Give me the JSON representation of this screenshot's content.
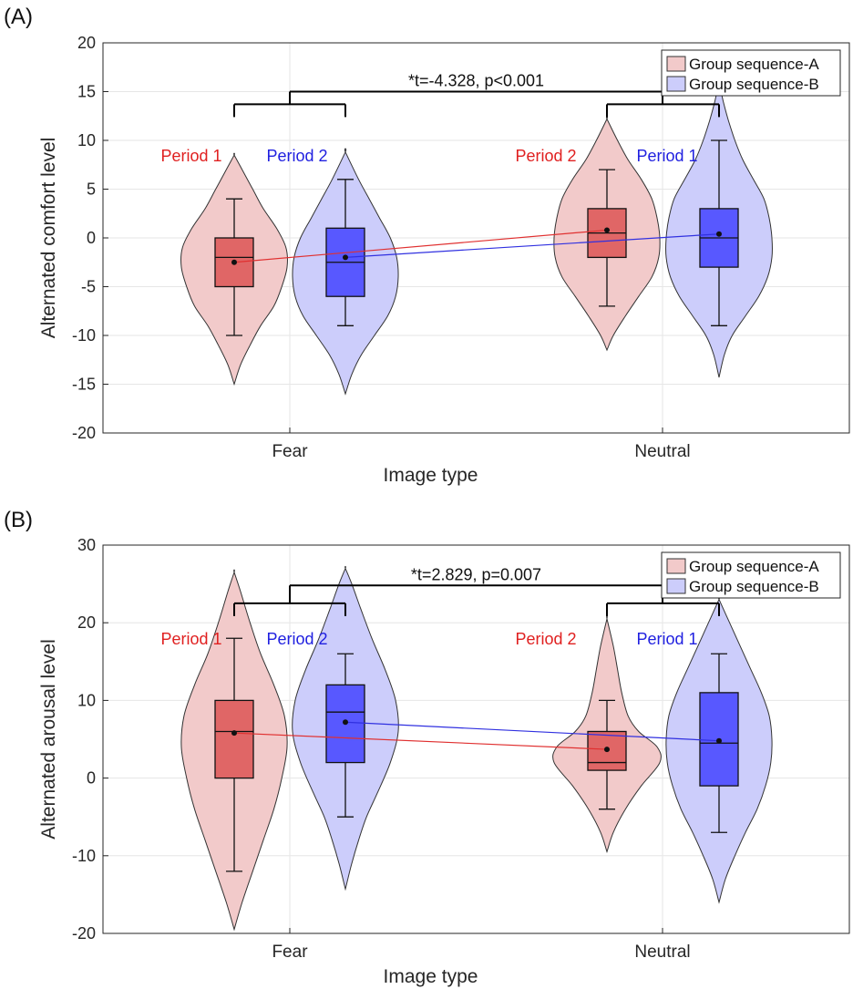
{
  "chart_data": [
    {
      "type": "violin",
      "panel_label": "(A)",
      "xlabel": "Image type",
      "ylabel": "Alternated comfort level",
      "categories": [
        "Fear",
        "Neutral"
      ],
      "ylim": [
        -20,
        20
      ],
      "yticks": [
        "20",
        "15",
        "10",
        "5",
        "0",
        "-5",
        "-10",
        "-15",
        "-20"
      ],
      "ytick_values": [
        20,
        15,
        10,
        5,
        0,
        -5,
        -10,
        -15,
        -20
      ],
      "grid": true,
      "legend": {
        "placement": "top-right",
        "entries": [
          "Group sequence-A",
          "Group sequence-B"
        ]
      },
      "annotation": "*t=-4.328, p<0.001",
      "series": [
        {
          "name": "Group sequence-A",
          "color": "#d9534f",
          "violins": [
            {
              "category": "Fear",
              "period": "Period 1",
              "min": -15,
              "max": 8.5,
              "whisker_low": -10,
              "q1": -5,
              "median": -2,
              "q3": 0,
              "whisker_high": 4,
              "mean": -2.5,
              "profile": [
                [
                  -15,
                  0
                ],
                [
                  -13,
                  0.12
                ],
                [
                  -11,
                  0.3
                ],
                [
                  -9,
                  0.5
                ],
                [
                  -7,
                  0.75
                ],
                [
                  -5,
                  0.9
                ],
                [
                  -3,
                  1
                ],
                [
                  -1,
                  0.98
                ],
                [
                  1,
                  0.8
                ],
                [
                  3,
                  0.55
                ],
                [
                  5,
                  0.35
                ],
                [
                  7,
                  0.15
                ],
                [
                  8.5,
                  0
                ]
              ]
            },
            {
              "category": "Neutral",
              "period": "Period 2",
              "min": -11.5,
              "max": 12.2,
              "whisker_low": -7,
              "q1": -2,
              "median": 0.5,
              "q3": 3,
              "whisker_high": 7,
              "mean": 0.8,
              "profile": [
                [
                  -11.5,
                  0
                ],
                [
                  -10,
                  0.12
                ],
                [
                  -8,
                  0.35
                ],
                [
                  -6,
                  0.6
                ],
                [
                  -4,
                  0.85
                ],
                [
                  -2,
                  0.98
                ],
                [
                  0,
                  1
                ],
                [
                  2,
                  0.95
                ],
                [
                  4,
                  0.85
                ],
                [
                  6,
                  0.65
                ],
                [
                  8,
                  0.4
                ],
                [
                  10,
                  0.2
                ],
                [
                  12.2,
                  0
                ]
              ]
            }
          ]
        },
        {
          "name": "Group sequence-B",
          "color": "#4a4aff",
          "violins": [
            {
              "category": "Fear",
              "period": "Period 2",
              "min": -16,
              "max": 8.8,
              "whisker_low": -9,
              "q1": -6,
              "median": -2.5,
              "q3": 1,
              "whisker_high": 6,
              "mean": -2,
              "profile": [
                [
                  -16,
                  0
                ],
                [
                  -14,
                  0.12
                ],
                [
                  -12,
                  0.3
                ],
                [
                  -10,
                  0.55
                ],
                [
                  -8,
                  0.8
                ],
                [
                  -6,
                  0.95
                ],
                [
                  -4,
                  1
                ],
                [
                  -2,
                  0.97
                ],
                [
                  0,
                  0.85
                ],
                [
                  2,
                  0.65
                ],
                [
                  4,
                  0.45
                ],
                [
                  6,
                  0.25
                ],
                [
                  8.8,
                  0
                ]
              ]
            },
            {
              "category": "Neutral",
              "period": "Period 1",
              "min": -14.3,
              "max": 16,
              "whisker_low": -9,
              "q1": -3,
              "median": 0,
              "q3": 3,
              "whisker_high": 10,
              "mean": 0.4,
              "profile": [
                [
                  -14.3,
                  0
                ],
                [
                  -12,
                  0.1
                ],
                [
                  -10,
                  0.25
                ],
                [
                  -8,
                  0.5
                ],
                [
                  -6,
                  0.75
                ],
                [
                  -4,
                  0.92
                ],
                [
                  -2,
                  1
                ],
                [
                  0,
                  1
                ],
                [
                  2,
                  0.95
                ],
                [
                  4,
                  0.85
                ],
                [
                  6,
                  0.65
                ],
                [
                  8,
                  0.45
                ],
                [
                  10,
                  0.3
                ],
                [
                  12,
                  0.18
                ],
                [
                  14,
                  0.08
                ],
                [
                  16,
                  0
                ]
              ]
            }
          ]
        }
      ],
      "bracket_pairs": [
        {
          "label": "Fear",
          "left": "Period 1",
          "right": "Period 2",
          "y": 13.7
        },
        {
          "label": "Neutral",
          "left": "Period 2",
          "right": "Period 1",
          "y": 13.7
        }
      ],
      "bracket_top": 15,
      "period_labels": [
        {
          "text": "Period 1",
          "color": "#e02020"
        },
        {
          "text": "Period 2",
          "color": "#2020e0"
        },
        {
          "text": "Period 2",
          "color": "#e02020"
        },
        {
          "text": "Period 1",
          "color": "#2020e0"
        }
      ]
    },
    {
      "type": "violin",
      "panel_label": "(B)",
      "xlabel": "Image type",
      "ylabel": "Alternated arousal level",
      "categories": [
        "Fear",
        "Neutral"
      ],
      "ylim": [
        -20,
        30
      ],
      "yticks": [
        "30",
        "20",
        "10",
        "0",
        "-10",
        "-20"
      ],
      "ytick_values": [
        30,
        20,
        10,
        0,
        -10,
        -20
      ],
      "grid": true,
      "legend": {
        "placement": "top-right",
        "entries": [
          "Group sequence-A",
          "Group sequence-B"
        ]
      },
      "annotation": "*t=2.829, p=0.007",
      "series": [
        {
          "name": "Group sequence-A",
          "color": "#d9534f",
          "violins": [
            {
              "category": "Fear",
              "period": "Period 1",
              "min": -19.5,
              "max": 26.5,
              "whisker_low": -12,
              "q1": 0,
              "median": 6,
              "q3": 10,
              "whisker_high": 18,
              "mean": 5.8,
              "profile": [
                [
                  -19.5,
                  0
                ],
                [
                  -16,
                  0.15
                ],
                [
                  -12,
                  0.35
                ],
                [
                  -8,
                  0.55
                ],
                [
                  -4,
                  0.75
                ],
                [
                  0,
                  0.9
                ],
                [
                  4,
                  1
                ],
                [
                  8,
                  0.95
                ],
                [
                  12,
                  0.75
                ],
                [
                  16,
                  0.5
                ],
                [
                  20,
                  0.3
                ],
                [
                  24,
                  0.12
                ],
                [
                  26.5,
                  0
                ]
              ]
            },
            {
              "category": "Neutral",
              "period": "Period 2",
              "min": -9.5,
              "max": 20.5,
              "whisker_low": -4,
              "q1": 1,
              "median": 2,
              "q3": 6,
              "whisker_high": 10,
              "mean": 3.7,
              "profile": [
                [
                  -9.5,
                  0
                ],
                [
                  -7,
                  0.12
                ],
                [
                  -4,
                  0.35
                ],
                [
                  -1,
                  0.65
                ],
                [
                  2,
                  1
                ],
                [
                  4,
                  0.95
                ],
                [
                  6,
                  0.6
                ],
                [
                  8,
                  0.4
                ],
                [
                  11,
                  0.28
                ],
                [
                  14,
                  0.2
                ],
                [
                  17,
                  0.12
                ],
                [
                  20.5,
                  0
                ]
              ]
            }
          ]
        },
        {
          "name": "Group sequence-B",
          "color": "#4a4aff",
          "violins": [
            {
              "category": "Fear",
              "period": "Period 2",
              "min": -14.3,
              "max": 27,
              "whisker_low": -5,
              "q1": 2,
              "median": 8.5,
              "q3": 12,
              "whisker_high": 16,
              "mean": 7.2,
              "profile": [
                [
                  -14.3,
                  0
                ],
                [
                  -11,
                  0.12
                ],
                [
                  -8,
                  0.25
                ],
                [
                  -5,
                  0.4
                ],
                [
                  -2,
                  0.6
                ],
                [
                  2,
                  0.85
                ],
                [
                  6,
                  1
                ],
                [
                  10,
                  0.95
                ],
                [
                  14,
                  0.75
                ],
                [
                  18,
                  0.5
                ],
                [
                  22,
                  0.28
                ],
                [
                  25,
                  0.12
                ],
                [
                  27,
                  0
                ]
              ]
            },
            {
              "category": "Neutral",
              "period": "Period 1",
              "min": -16,
              "max": 23,
              "whisker_low": -7,
              "q1": -1,
              "median": 4.5,
              "q3": 11,
              "whisker_high": 16,
              "mean": 4.8,
              "profile": [
                [
                  -16,
                  0
                ],
                [
                  -13,
                  0.12
                ],
                [
                  -10,
                  0.3
                ],
                [
                  -7,
                  0.5
                ],
                [
                  -4,
                  0.72
                ],
                [
                  -1,
                  0.88
                ],
                [
                  2,
                  0.98
                ],
                [
                  5,
                  1
                ],
                [
                  8,
                  0.95
                ],
                [
                  11,
                  0.8
                ],
                [
                  14,
                  0.6
                ],
                [
                  17,
                  0.4
                ],
                [
                  20,
                  0.2
                ],
                [
                  23,
                  0
                ]
              ]
            }
          ]
        }
      ],
      "bracket_pairs": [
        {
          "label": "Fear",
          "left": "Period 1",
          "right": "Period 2",
          "y": 22.5
        },
        {
          "label": "Neutral",
          "left": "Period 2",
          "right": "Period 1",
          "y": 22.5
        }
      ],
      "bracket_top": 24.8,
      "period_labels": [
        {
          "text": "Period 1",
          "color": "#e02020"
        },
        {
          "text": "Period 2",
          "color": "#2020e0"
        },
        {
          "text": "Period 2",
          "color": "#e02020"
        },
        {
          "text": "Period 1",
          "color": "#2020e0"
        }
      ]
    }
  ]
}
